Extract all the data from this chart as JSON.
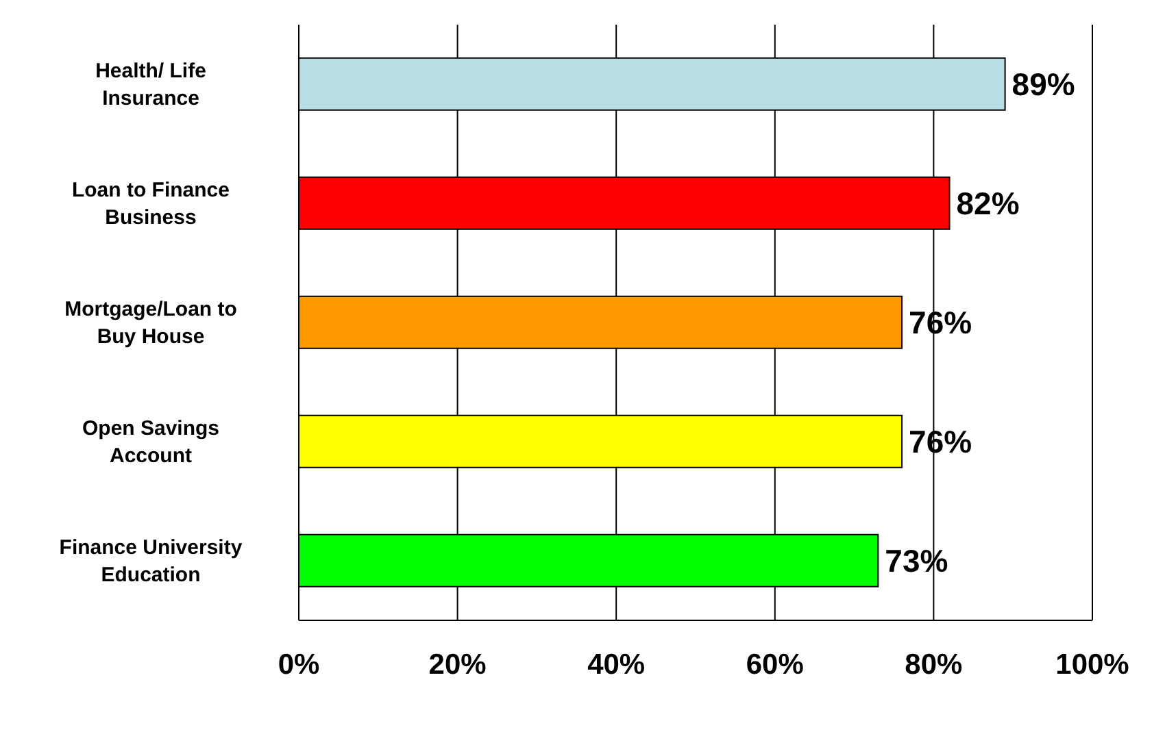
{
  "chart_data": {
    "type": "bar",
    "orientation": "horizontal",
    "categories": [
      "Health/ Life Insurance",
      "Loan to Finance Business",
      "Mortgage/Loan to Buy House",
      "Open Savings Account",
      "Finance University Education"
    ],
    "values": [
      89,
      82,
      76,
      76,
      73
    ],
    "value_labels": [
      "89%",
      "82%",
      "76%",
      "76%",
      "73%"
    ],
    "colors": [
      "#b7dfe3",
      "#ff0000",
      "#ff9900",
      "#ffff00",
      "#00ff00"
    ],
    "xlim": [
      0,
      100
    ],
    "xticks": [
      {
        "value": 0,
        "label": "0%"
      },
      {
        "value": 20,
        "label": "20%"
      },
      {
        "value": 40,
        "label": "40%"
      },
      {
        "value": 60,
        "label": "60%"
      },
      {
        "value": 80,
        "label": "80%"
      },
      {
        "value": 100,
        "label": "100%"
      }
    ],
    "grid": "x"
  }
}
